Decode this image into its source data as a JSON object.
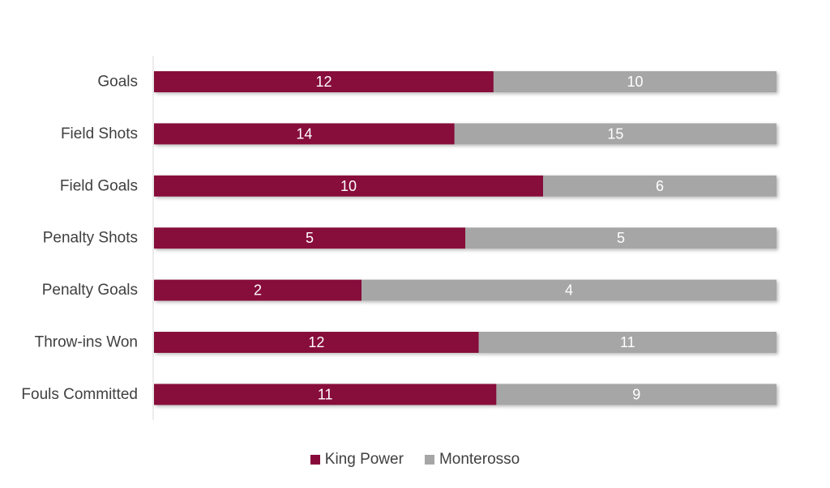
{
  "chart_data": {
    "type": "bar",
    "orientation": "horizontal",
    "stacking": "percent",
    "categories": [
      "Goals",
      "Field Shots",
      "Field Goals",
      "Penalty Shots",
      "Penalty Goals",
      "Throw-ins Won",
      "Fouls Committed"
    ],
    "series": [
      {
        "name": "King Power",
        "color": "#87093a",
        "values": [
          12,
          14,
          10,
          5,
          2,
          12,
          11
        ]
      },
      {
        "name": "Monterosso",
        "color": "#a6a6a6",
        "values": [
          10,
          15,
          6,
          5,
          4,
          11,
          9
        ]
      }
    ],
    "title": "",
    "xlabel": "",
    "ylabel": "",
    "grid": false,
    "legend_position": "bottom"
  }
}
